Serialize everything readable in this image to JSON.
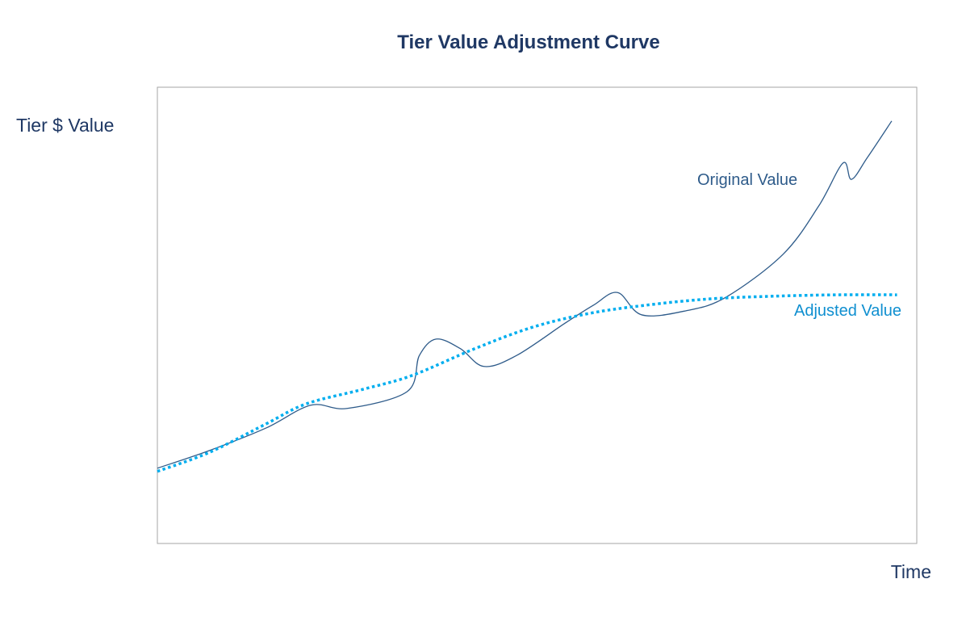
{
  "chart_data": {
    "type": "line",
    "title": "Tier Value Adjustment Curve",
    "xlabel": "Time",
    "ylabel": "Tier $ Value",
    "xlim": [
      0,
      100
    ],
    "ylim": [
      0,
      100
    ],
    "grid": false,
    "ticks": false,
    "series": [
      {
        "name": "Original Value",
        "color": "#2e5b8a",
        "style": "solid",
        "points": [
          [
            0,
            16.5
          ],
          [
            6.9,
            20.4
          ],
          [
            14.3,
            25.3
          ],
          [
            20.2,
            30.3
          ],
          [
            25.0,
            29.6
          ],
          [
            32.9,
            33.3
          ],
          [
            34.5,
            41.2
          ],
          [
            36.7,
            44.8
          ],
          [
            39.9,
            42.7
          ],
          [
            43.0,
            38.8
          ],
          [
            47.3,
            41.2
          ],
          [
            53.7,
            48.3
          ],
          [
            57.4,
            52.2
          ],
          [
            60.6,
            55.0
          ],
          [
            63.8,
            50.1
          ],
          [
            69.6,
            51.0
          ],
          [
            74.9,
            54.0
          ],
          [
            82.4,
            63.4
          ],
          [
            87.1,
            74.0
          ],
          [
            90.3,
            83.4
          ],
          [
            91.4,
            79.8
          ],
          [
            93.5,
            84.6
          ],
          [
            96.7,
            92.6
          ]
        ]
      },
      {
        "name": "Adjusted Value",
        "color": "#00aeef",
        "style": "dotted",
        "points": [
          [
            0,
            15.8
          ],
          [
            6.9,
            20.0
          ],
          [
            14.3,
            26.2
          ],
          [
            19.6,
            30.6
          ],
          [
            27.1,
            33.8
          ],
          [
            33.5,
            36.8
          ],
          [
            41.8,
            42.7
          ],
          [
            49.4,
            47.4
          ],
          [
            56.8,
            50.4
          ],
          [
            64.2,
            52.2
          ],
          [
            72.7,
            53.6
          ],
          [
            81.2,
            54.2
          ],
          [
            89.7,
            54.5
          ],
          [
            97.4,
            54.5
          ]
        ]
      }
    ]
  }
}
